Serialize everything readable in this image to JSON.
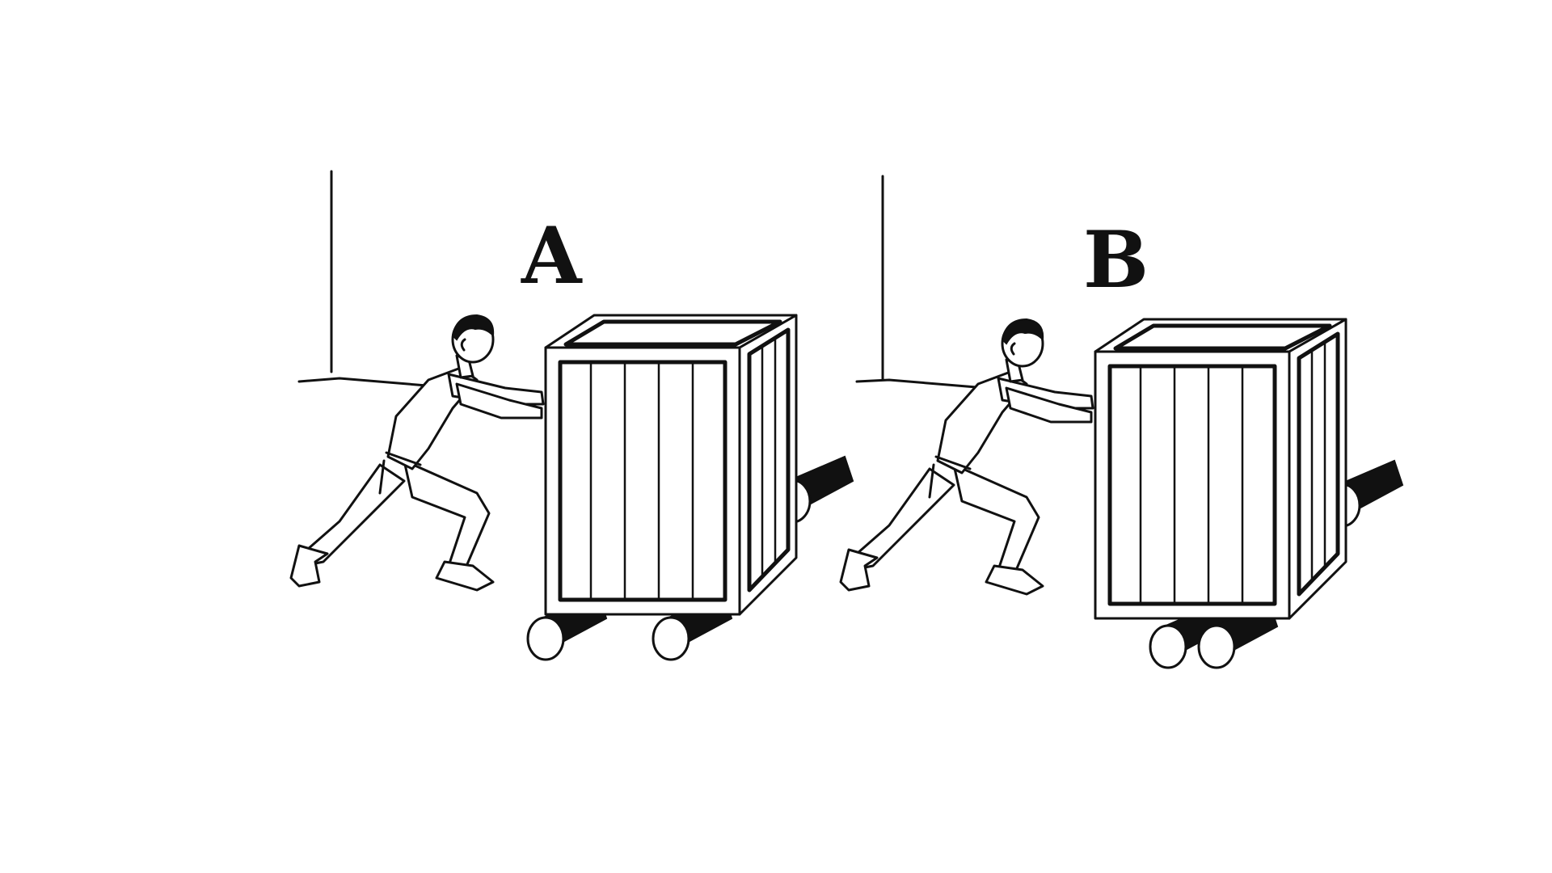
{
  "figure": {
    "panels": [
      {
        "id": "A",
        "label": "A",
        "rollers": "spaced"
      },
      {
        "id": "B",
        "label": "B",
        "rollers": "together"
      }
    ],
    "colors": {
      "ink": "#111111",
      "paper": "#ffffff"
    }
  }
}
